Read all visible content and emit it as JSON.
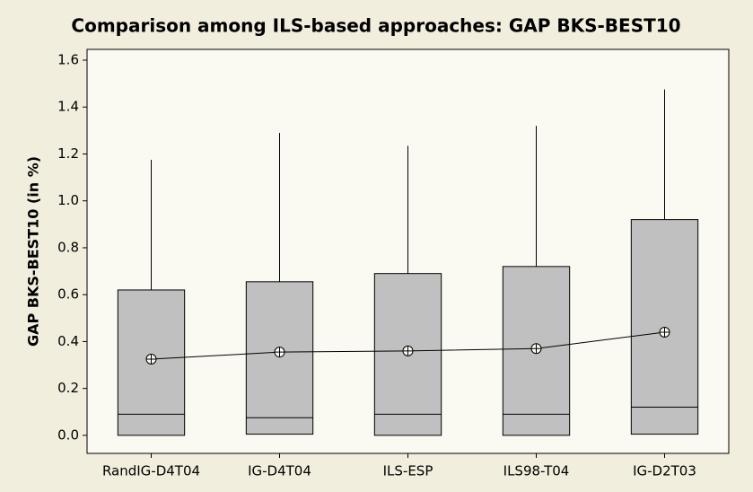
{
  "chart_data": {
    "type": "box",
    "title": "Comparison among ILS-based approaches: GAP BKS-BEST10",
    "y_label": "GAP BKS-BEST10 (in %)",
    "categories": [
      "RandIG-D4T04",
      "IG-D4T04",
      "ILS-ESP",
      "ILS98-T04",
      "IG-D2T03"
    ],
    "min": [
      0,
      0.005,
      0,
      0,
      0.005
    ],
    "q1": [
      0,
      0.005,
      0,
      0,
      0.005
    ],
    "median": [
      0.09,
      0.075,
      0.09,
      0.09,
      0.12
    ],
    "q3": [
      0.62,
      0.655,
      0.69,
      0.72,
      0.92
    ],
    "max": [
      1.175,
      1.29,
      1.235,
      1.32,
      1.475
    ],
    "mean": [
      0.325,
      0.355,
      0.36,
      0.37,
      0.44
    ],
    "color": "#c0c0c0",
    "ylim": [
      -0.077,
      1.646
    ],
    "yticks": [
      {
        "value": 0,
        "label": "0.0"
      },
      {
        "value": 0.2,
        "label": "0.2"
      },
      {
        "value": 0.4,
        "label": "0.4"
      },
      {
        "value": 0.6,
        "label": "0.6"
      },
      {
        "value": 0.8,
        "label": "0.8"
      },
      {
        "value": 1.0,
        "label": "1.0"
      },
      {
        "value": 1.2,
        "label": "1.2"
      },
      {
        "value": 1.4,
        "label": "1.4"
      },
      {
        "value": 1.6,
        "label": "1.6"
      }
    ]
  }
}
